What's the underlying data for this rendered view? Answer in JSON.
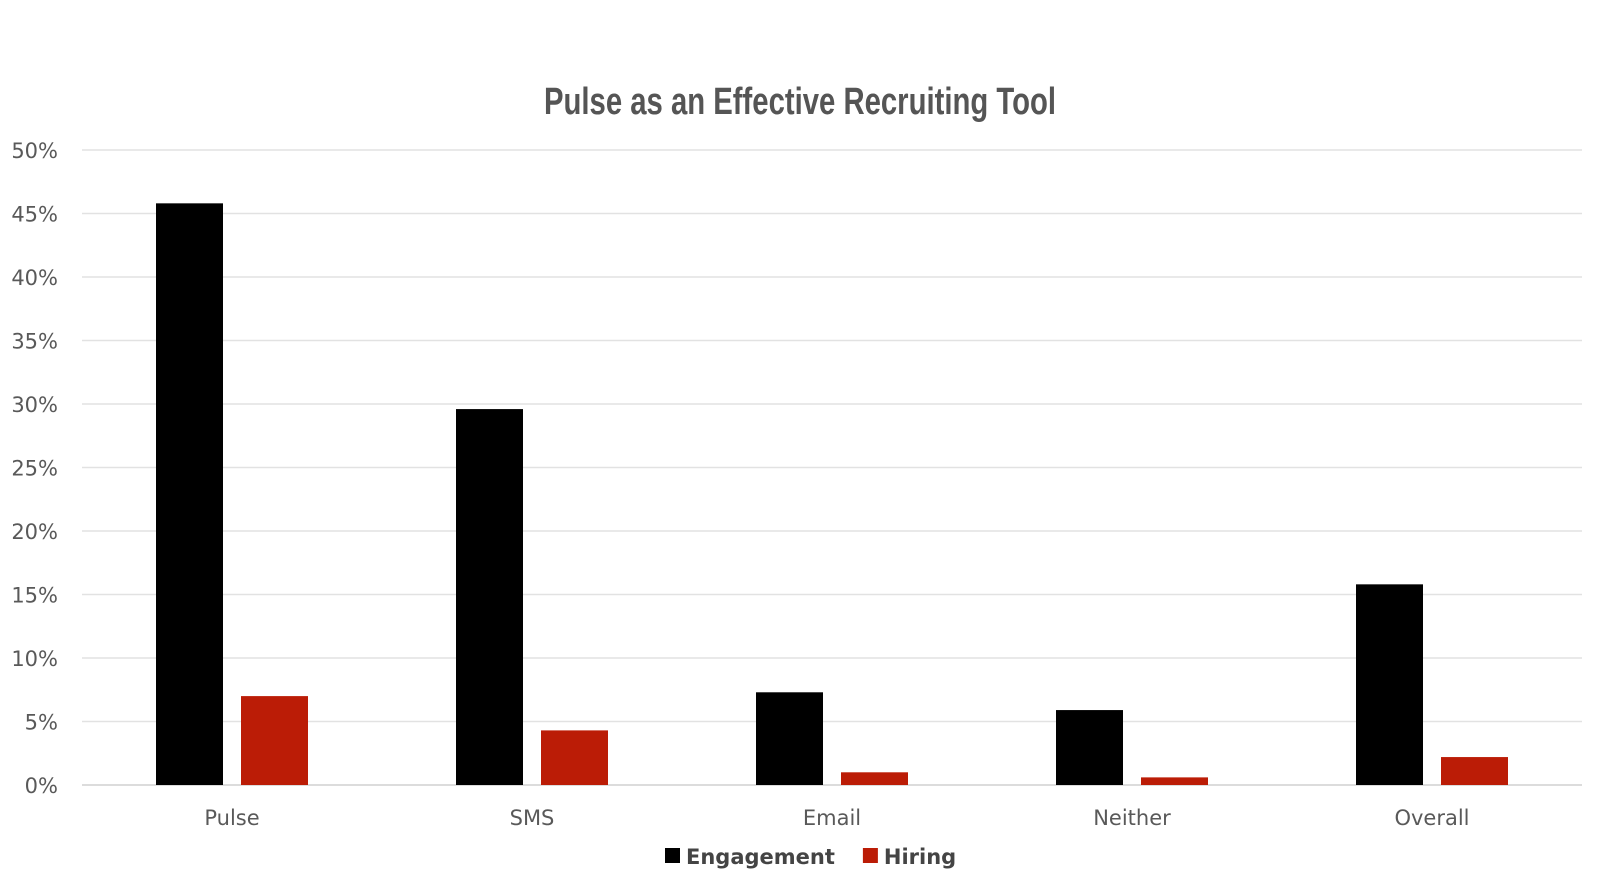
{
  "chart_data": {
    "type": "bar",
    "title": "Pulse as an Effective Recruiting Tool",
    "categories": [
      "Pulse",
      "SMS",
      "Email",
      "Neither",
      "Overall"
    ],
    "series": [
      {
        "name": "Engagement",
        "color": "#000000",
        "values": [
          45.8,
          29.6,
          7.3,
          5.9,
          15.8
        ]
      },
      {
        "name": "Hiring",
        "color": "#bb1c06",
        "values": [
          7.0,
          4.3,
          1.0,
          0.6,
          2.2
        ]
      }
    ],
    "y_ticks": [
      "0%",
      "5%",
      "10%",
      "15%",
      "20%",
      "25%",
      "30%",
      "35%",
      "40%",
      "45%",
      "50%"
    ],
    "ylim": [
      0,
      50
    ],
    "grid": true,
    "legend_position": "bottom"
  }
}
